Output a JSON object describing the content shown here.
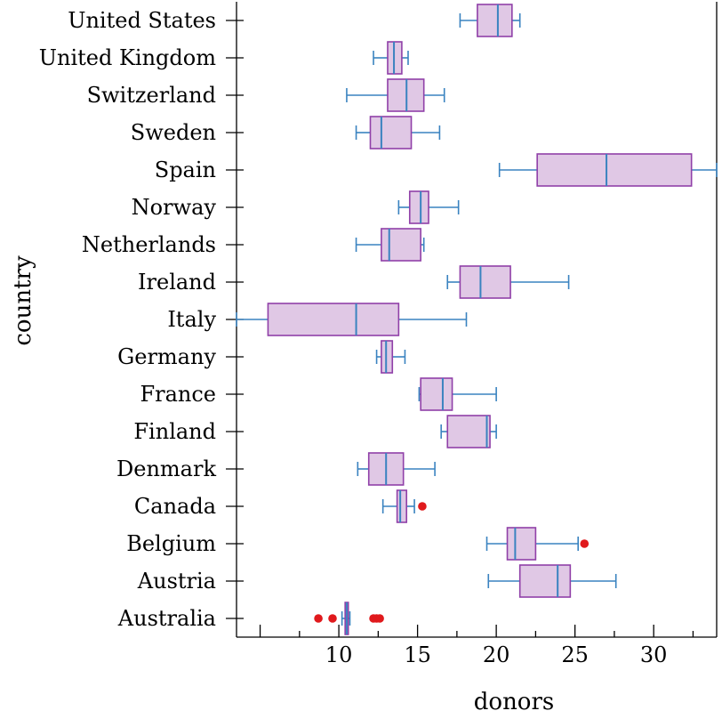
{
  "chart_data": {
    "type": "boxplot",
    "orientation": "horizontal",
    "xlabel": "donors",
    "ylabel": "country",
    "xlim": [
      3.5,
      34
    ],
    "xticks": [
      10,
      15,
      20,
      25,
      30
    ],
    "xtick_labels": [
      "10",
      "15",
      "20",
      "25",
      "30"
    ],
    "grid": false,
    "colors": {
      "box_fill": "#e0c8e5",
      "box_edge": "#9040a8",
      "whisker": "#3a83c0",
      "outlier": "#e0191c"
    },
    "categories": [
      "United States",
      "United Kingdom",
      "Switzerland",
      "Sweden",
      "Spain",
      "Norway",
      "Netherlands",
      "Ireland",
      "Italy",
      "Germany",
      "France",
      "Finland",
      "Denmark",
      "Canada",
      "Belgium",
      "Austria",
      "Australia"
    ],
    "boxes": [
      {
        "category": "United States",
        "whislo": 17.7,
        "q1": 18.8,
        "med": 20.1,
        "q3": 21.0,
        "whishi": 21.5,
        "outliers": []
      },
      {
        "category": "United Kingdom",
        "whislo": 12.2,
        "q1": 13.1,
        "med": 13.5,
        "q3": 14.0,
        "whishi": 14.4,
        "outliers": []
      },
      {
        "category": "Switzerland",
        "whislo": 10.5,
        "q1": 13.1,
        "med": 14.3,
        "q3": 15.4,
        "whishi": 16.7,
        "outliers": []
      },
      {
        "category": "Sweden",
        "whislo": 11.1,
        "q1": 12.0,
        "med": 12.7,
        "q3": 14.6,
        "whishi": 16.4,
        "outliers": []
      },
      {
        "category": "Spain",
        "whislo": 20.2,
        "q1": 22.6,
        "med": 27.0,
        "q3": 32.4,
        "whishi": 34.0,
        "outliers": []
      },
      {
        "category": "Norway",
        "whislo": 13.8,
        "q1": 14.5,
        "med": 15.2,
        "q3": 15.7,
        "whishi": 17.6,
        "outliers": []
      },
      {
        "category": "Netherlands",
        "whislo": 11.1,
        "q1": 12.7,
        "med": 13.2,
        "q3": 15.2,
        "whishi": 15.4,
        "outliers": []
      },
      {
        "category": "Ireland",
        "whislo": 16.9,
        "q1": 17.7,
        "med": 19.0,
        "q3": 20.9,
        "whishi": 24.6,
        "outliers": []
      },
      {
        "category": "Italy",
        "whislo": 3.5,
        "q1": 5.5,
        "med": 11.1,
        "q3": 13.8,
        "whishi": 18.1,
        "outliers": []
      },
      {
        "category": "Germany",
        "whislo": 12.4,
        "q1": 12.7,
        "med": 13.0,
        "q3": 13.4,
        "whishi": 14.2,
        "outliers": []
      },
      {
        "category": "France",
        "whislo": 15.1,
        "q1": 15.2,
        "med": 16.6,
        "q3": 17.2,
        "whishi": 20.0,
        "outliers": []
      },
      {
        "category": "Finland",
        "whislo": 16.5,
        "q1": 16.9,
        "med": 19.4,
        "q3": 19.6,
        "whishi": 20.0,
        "outliers": []
      },
      {
        "category": "Denmark",
        "whislo": 11.2,
        "q1": 11.9,
        "med": 13.0,
        "q3": 14.1,
        "whishi": 16.1,
        "outliers": []
      },
      {
        "category": "Canada",
        "whislo": 12.8,
        "q1": 13.7,
        "med": 13.9,
        "q3": 14.3,
        "whishi": 14.8,
        "outliers": [
          15.3
        ]
      },
      {
        "category": "Belgium",
        "whislo": 19.4,
        "q1": 20.7,
        "med": 21.2,
        "q3": 22.5,
        "whishi": 25.2,
        "outliers": [
          25.6
        ]
      },
      {
        "category": "Austria",
        "whislo": 19.5,
        "q1": 21.5,
        "med": 23.9,
        "q3": 24.7,
        "whishi": 27.6,
        "outliers": []
      },
      {
        "category": "Australia",
        "whislo": 10.2,
        "q1": 10.4,
        "med": 10.5,
        "q3": 10.6,
        "whishi": 10.7,
        "outliers": [
          8.7,
          9.6,
          12.2,
          12.4,
          12.6
        ]
      }
    ]
  }
}
